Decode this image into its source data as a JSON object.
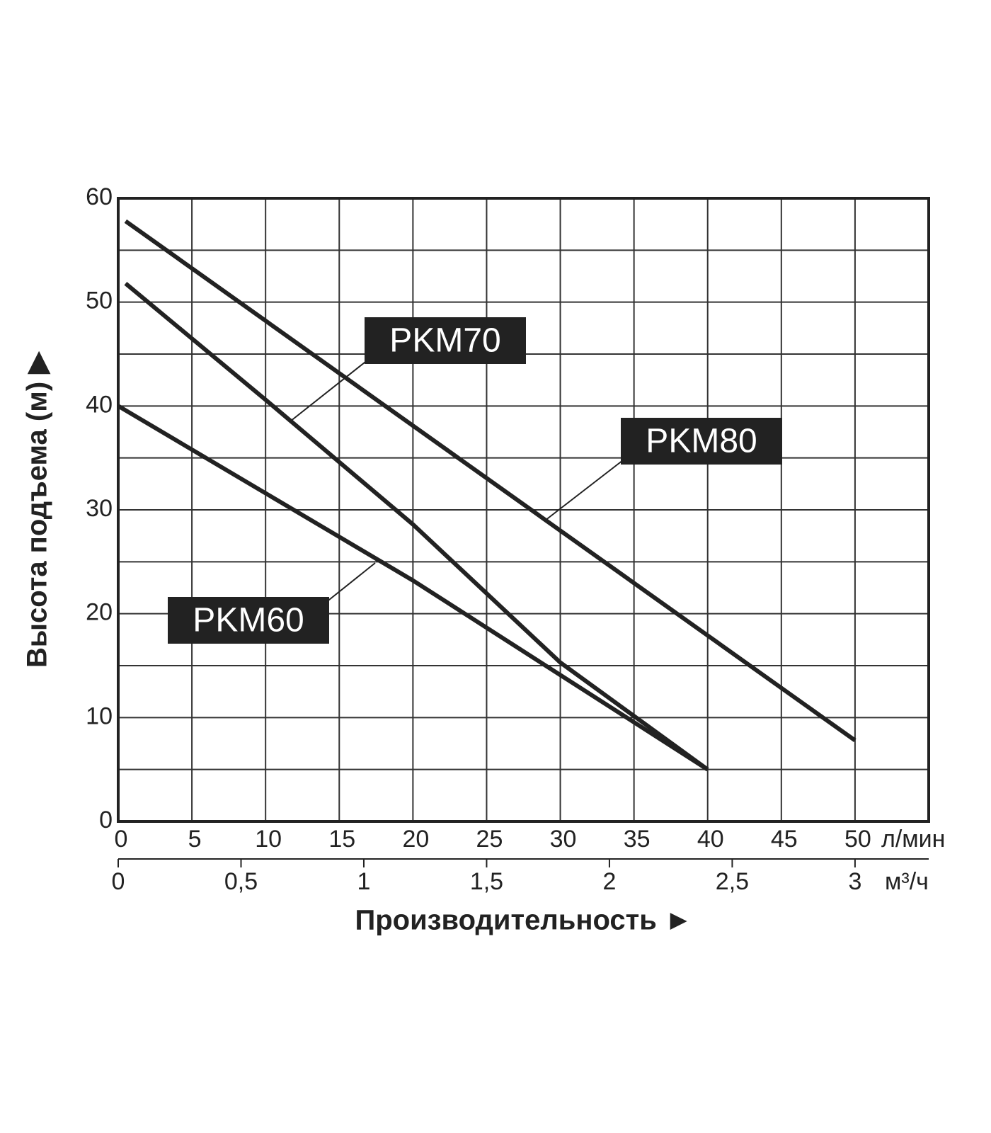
{
  "chart_data": {
    "type": "line",
    "x_axis_title": "Производительность ►",
    "y_axis_title": "Высота подъема (м) ▶",
    "x_unit": "л/мин",
    "x2_unit": "м³/ч",
    "series": [
      {
        "name": "PKM80",
        "color": "#222222",
        "x": [
          0.5,
          50
        ],
        "values": [
          57.8,
          7.8
        ]
      },
      {
        "name": "PKM70",
        "color": "#222222",
        "x": [
          0.5,
          10,
          20,
          30,
          40
        ],
        "values": [
          51.8,
          40.6,
          28.6,
          15.3,
          5
        ]
      },
      {
        "name": "PKM60",
        "color": "#222222",
        "x": [
          0,
          20,
          40
        ],
        "values": [
          40,
          23.2,
          5
        ]
      }
    ],
    "xlim": [
      0,
      55
    ],
    "xticks": [
      0,
      5,
      10,
      15,
      20,
      25,
      30,
      35,
      40,
      45,
      50
    ],
    "x2lim": [
      0,
      3.3
    ],
    "x2ticks": [
      0,
      {
        "value": 0.5,
        "label": "0,5"
      },
      1,
      {
        "value": 1.5,
        "label": "1,5"
      },
      2,
      {
        "value": 2.5,
        "label": "2,5"
      },
      3
    ],
    "ylim": [
      0,
      60
    ],
    "yticks": [
      0,
      10,
      20,
      30,
      40,
      50,
      60
    ],
    "y_minor_grid": [
      5,
      15,
      25,
      35,
      45,
      55
    ],
    "grid": true
  }
}
